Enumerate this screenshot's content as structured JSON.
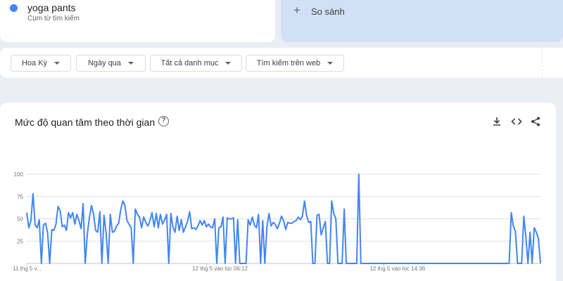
{
  "search_term": {
    "name": "yoga pants",
    "subtitle": "Cụm từ tìm kiếm",
    "color": "#4285f4"
  },
  "compare": {
    "label": "So sánh",
    "icon": "plus-icon"
  },
  "filters": [
    {
      "label": "Hoa Kỳ"
    },
    {
      "label": "Ngày qua"
    },
    {
      "label": "Tất cả danh mục"
    },
    {
      "label": "Tìm kiếm trên web"
    }
  ],
  "chart": {
    "title": "Mức độ quan tâm theo thời gian",
    "help_icon": "help-circle-icon",
    "actions": [
      "download-icon",
      "embed-code-icon",
      "share-icon"
    ]
  },
  "chart_data": {
    "type": "line",
    "series": [
      {
        "color": "#4285f4",
        "values": [
          57,
          40,
          48,
          78,
          43,
          40,
          49,
          0,
          43,
          45,
          34,
          0,
          38,
          37,
          44,
          64,
          59,
          41,
          43,
          37,
          57,
          51,
          57,
          44,
          55,
          48,
          39,
          67,
          0,
          33,
          51,
          65,
          55,
          37,
          35,
          58,
          0,
          54,
          34,
          0,
          55,
          35,
          36,
          42,
          45,
          60,
          70,
          65,
          48,
          44,
          40,
          0,
          61,
          55,
          52,
          40,
          52,
          46,
          42,
          48,
          57,
          41,
          56,
          40,
          55,
          44,
          49,
          55,
          0,
          56,
          41,
          35,
          53,
          37,
          49,
          35,
          41,
          47,
          58,
          39,
          40,
          38,
          42,
          48,
          43,
          48,
          41,
          44,
          41,
          40,
          50,
          0,
          40,
          41,
          52,
          0,
          51,
          50,
          50,
          51,
          0,
          49,
          0,
          0,
          0,
          0,
          49,
          43,
          52,
          43,
          40,
          55,
          0,
          48,
          0,
          41,
          56,
          42,
          46,
          44,
          39,
          45,
          53,
          48,
          38,
          46,
          45,
          45,
          47,
          48,
          52,
          49,
          53,
          70,
          54,
          46,
          47,
          0,
          0,
          54,
          55,
          32,
          40,
          47,
          0,
          0,
          70,
          56,
          50,
          0,
          0,
          0,
          61,
          0,
          0,
          0,
          0,
          0,
          0,
          100,
          0,
          0,
          0,
          0,
          0,
          0,
          0,
          0,
          0,
          0,
          0,
          0,
          0,
          0,
          0,
          0,
          0,
          0,
          0,
          0,
          0,
          0,
          0,
          0,
          0,
          0,
          0,
          0,
          0,
          0,
          0,
          0,
          0,
          0,
          0,
          0,
          0,
          0,
          0,
          0,
          0,
          0,
          0,
          0,
          0,
          0,
          0,
          0,
          0,
          0,
          0,
          0,
          0,
          0,
          0,
          0,
          0,
          0,
          0,
          0,
          0,
          0,
          0,
          0,
          0,
          0,
          0,
          0,
          0,
          0,
          0,
          0,
          57,
          42,
          36,
          0,
          0,
          0,
          53,
          30,
          0,
          35,
          0,
          40,
          35,
          28,
          0
        ],
        "partial_from_index": 250
      }
    ],
    "ylim": [
      0,
      100
    ],
    "yticks": [
      "100",
      "75",
      "50",
      "25"
    ],
    "xticks": [
      {
        "label": "11 thg 5 v...",
        "index": 0
      },
      {
        "label": "12 thg 5 vào lúc 06:12",
        "index": 86
      },
      {
        "label": "12 thg 5 vào lúc 14:36",
        "index": 171
      }
    ],
    "grid": true
  }
}
